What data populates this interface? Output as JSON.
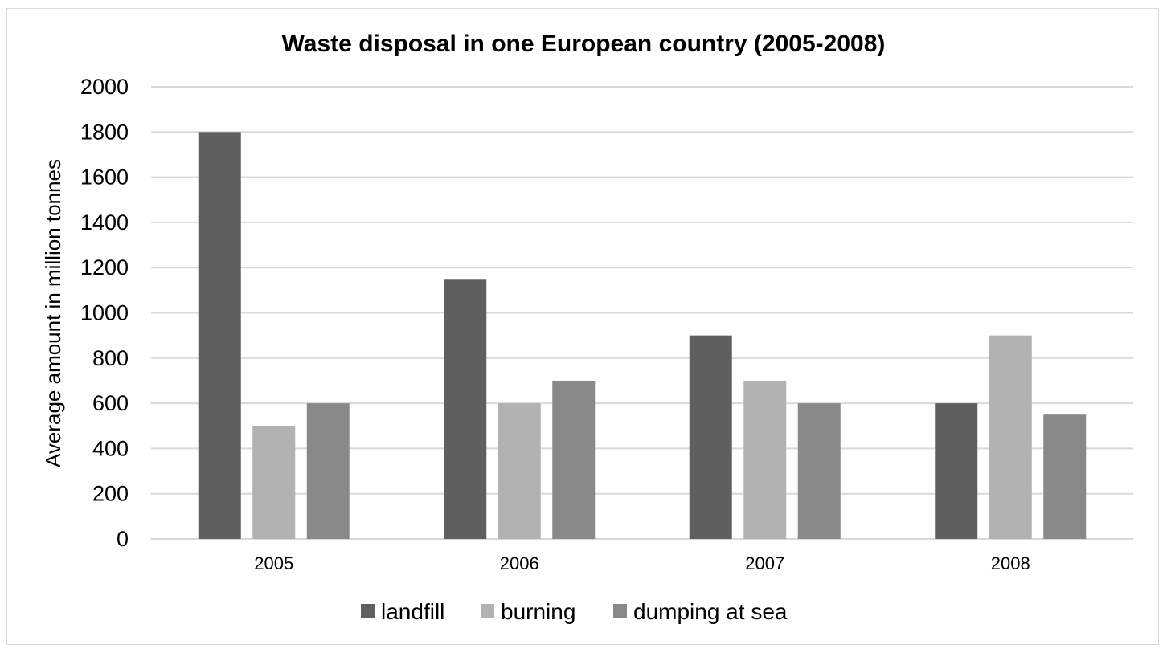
{
  "chart_data": {
    "type": "bar",
    "title": "Waste disposal in one European country (2005-2008)",
    "xlabel": "",
    "ylabel": "Average amount in million tonnes",
    "categories": [
      "2005",
      "2006",
      "2007",
      "2008"
    ],
    "series": [
      {
        "name": "landfill",
        "values": [
          1800,
          1150,
          900,
          600
        ],
        "color": "#5f5f5f"
      },
      {
        "name": "burning",
        "values": [
          500,
          600,
          700,
          900
        ],
        "color": "#b2b2b2"
      },
      {
        "name": "dumping at sea",
        "values": [
          600,
          700,
          600,
          550
        ],
        "color": "#898989"
      }
    ],
    "ylim": [
      0,
      2000
    ],
    "yticks": [
      "0",
      "200",
      "400",
      "600",
      "800",
      "1000",
      "1200",
      "1400",
      "1600",
      "1800",
      "2000"
    ],
    "grid": true,
    "gridColor": "#d9d9d9",
    "legend": "bottom"
  }
}
